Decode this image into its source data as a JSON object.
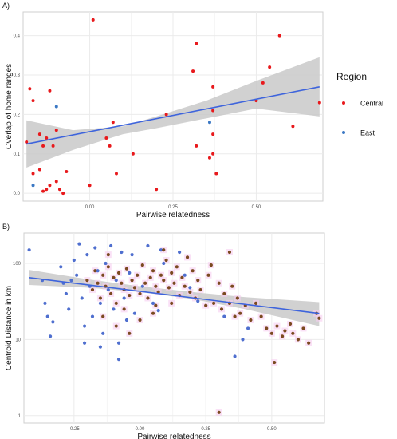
{
  "colors": {
    "central": "#e8191c",
    "east": "#3b78c4",
    "brown": "#7b4a20",
    "blue_dot": "#4f6fcf",
    "fit_line": "#3e64dc",
    "ribbon": "#c9c9c9",
    "grid": "#ebebeb",
    "panel_border": "#cfcfcf",
    "pink": "#f7cdf0"
  },
  "chart_data": [
    {
      "panel_label": "A)",
      "type": "scatter",
      "xlabel": "Pairwise relatedness",
      "ylabel": "Overlap of home ranges",
      "xlim": [
        -0.2,
        0.7
      ],
      "ylim": [
        -0.02,
        0.46
      ],
      "xticks": [
        0.0,
        0.25,
        0.5
      ],
      "xtick_labels": [
        "0.00",
        "0.25",
        "0.50"
      ],
      "yticks": [
        0.0,
        0.1,
        0.2,
        0.3,
        0.4
      ],
      "ytick_labels": [
        "0.0",
        "0.1",
        "0.2",
        "0.3",
        "0.4"
      ],
      "grid": true,
      "legend": {
        "title": "Region",
        "placement": "right",
        "entries": [
          {
            "label": "Central",
            "color": "#e8191c"
          },
          {
            "label": "East",
            "color": "#3b78c4"
          }
        ]
      },
      "fit": {
        "x": [
          -0.19,
          0.69
        ],
        "y": [
          0.125,
          0.27
        ]
      },
      "ribbon": {
        "x": [
          -0.19,
          -0.05,
          0.1,
          0.2,
          0.35,
          0.5,
          0.69
        ],
        "upper": [
          0.185,
          0.16,
          0.17,
          0.195,
          0.235,
          0.285,
          0.345
        ],
        "lower": [
          0.065,
          0.11,
          0.15,
          0.165,
          0.19,
          0.215,
          0.195
        ]
      },
      "series": [
        {
          "name": "Central",
          "color": "#e8191c",
          "points": [
            [
              0.01,
              0.44
            ],
            [
              -0.19,
              0.13
            ],
            [
              -0.18,
              0.265
            ],
            [
              -0.17,
              0.235
            ],
            [
              -0.15,
              0.15
            ],
            [
              -0.14,
              0.12
            ],
            [
              -0.13,
              0.14
            ],
            [
              -0.12,
              0.26
            ],
            [
              -0.11,
              0.12
            ],
            [
              -0.1,
              0.16
            ],
            [
              -0.17,
              0.05
            ],
            [
              -0.15,
              0.06
            ],
            [
              -0.13,
              0.01
            ],
            [
              -0.12,
              0.02
            ],
            [
              -0.1,
              0.03
            ],
            [
              -0.09,
              0.01
            ],
            [
              -0.08,
              0.0
            ],
            [
              -0.07,
              0.055
            ],
            [
              -0.14,
              0.005
            ],
            [
              0.0,
              0.02
            ],
            [
              0.05,
              0.14
            ],
            [
              0.06,
              0.12
            ],
            [
              0.07,
              0.18
            ],
            [
              0.08,
              0.05
            ],
            [
              0.13,
              0.1
            ],
            [
              0.2,
              0.01
            ],
            [
              0.23,
              0.2
            ],
            [
              0.31,
              0.31
            ],
            [
              0.32,
              0.38
            ],
            [
              0.32,
              0.12
            ],
            [
              0.37,
              0.27
            ],
            [
              0.37,
              0.21
            ],
            [
              0.37,
              0.15
            ],
            [
              0.37,
              0.1
            ],
            [
              0.38,
              0.05
            ],
            [
              0.5,
              0.235
            ],
            [
              0.52,
              0.28
            ],
            [
              0.54,
              0.32
            ],
            [
              0.57,
              0.4
            ],
            [
              0.61,
              0.17
            ],
            [
              0.69,
              0.23
            ],
            [
              0.36,
              0.09
            ]
          ]
        },
        {
          "name": "East",
          "color": "#3b78c4",
          "points": [
            [
              -0.1,
              0.22
            ],
            [
              0.36,
              0.18
            ],
            [
              -0.17,
              0.02
            ]
          ]
        }
      ]
    },
    {
      "panel_label": "B)",
      "type": "scatter",
      "xlabel": "Pairwise relatedness",
      "ylabel": "Centroid Distance in km",
      "xlim": [
        -0.44,
        0.7
      ],
      "ylog": true,
      "ylim": [
        0.8,
        250
      ],
      "xticks": [
        -0.25,
        0.0,
        0.25,
        0.5
      ],
      "xtick_labels": [
        "-0.25",
        "0.00",
        "0.25",
        "0.50"
      ],
      "yticks": [
        1,
        10,
        100
      ],
      "ytick_labels": [
        "1",
        "10",
        "100"
      ],
      "grid": true,
      "fit": {
        "x": [
          -0.42,
          0.68
        ],
        "y": [
          65,
          22
        ]
      },
      "ribbon": {
        "x": [
          -0.42,
          -0.2,
          0.0,
          0.2,
          0.4,
          0.68
        ],
        "upper": [
          82,
          62,
          50,
          42,
          36,
          31
        ],
        "lower": [
          52,
          48,
          42,
          34,
          25,
          15
        ]
      },
      "series": [
        {
          "color": "#4f6fcf",
          "points": [
            [
              -0.42,
              150
            ],
            [
              -0.37,
              60
            ],
            [
              -0.36,
              30
            ],
            [
              -0.35,
              20
            ],
            [
              -0.34,
              11
            ],
            [
              -0.3,
              90
            ],
            [
              -0.28,
              40
            ],
            [
              -0.27,
              25
            ],
            [
              -0.26,
              60
            ],
            [
              -0.25,
              110
            ],
            [
              -0.24,
              70
            ],
            [
              -0.23,
              180
            ],
            [
              -0.22,
              35
            ],
            [
              -0.21,
              15
            ],
            [
              -0.2,
              130
            ],
            [
              -0.19,
              50
            ],
            [
              -0.18,
              20
            ],
            [
              -0.17,
              160
            ],
            [
              -0.16,
              80
            ],
            [
              -0.15,
              30
            ],
            [
              -0.14,
              12
            ],
            [
              -0.13,
              100
            ],
            [
              -0.12,
              45
            ],
            [
              -0.11,
              170
            ],
            [
              -0.1,
              25
            ],
            [
              -0.09,
              60
            ],
            [
              -0.08,
              9
            ],
            [
              -0.07,
              140
            ],
            [
              -0.06,
              35
            ],
            [
              -0.05,
              18
            ],
            [
              -0.04,
              75
            ],
            [
              -0.03,
              130
            ],
            [
              0.01,
              50
            ],
            [
              0.03,
              170
            ],
            [
              0.05,
              30
            ],
            [
              0.08,
              150
            ],
            [
              0.09,
              100
            ],
            [
              0.15,
              140
            ],
            [
              0.17,
              70
            ],
            [
              0.32,
              20
            ],
            [
              0.36,
              6
            ],
            [
              0.39,
              10
            ],
            [
              0.41,
              14
            ],
            [
              -0.08,
              5.5
            ],
            [
              -0.33,
              17
            ],
            [
              -0.21,
              9
            ],
            [
              -0.02,
              22
            ],
            [
              0.19,
              48
            ],
            [
              -0.29,
              55
            ],
            [
              -0.15,
              8
            ],
            [
              0.07,
              24
            ],
            [
              0.22,
              32
            ]
          ]
        },
        {
          "color": "#7b4a20",
          "points": [
            [
              -0.2,
              60
            ],
            [
              -0.18,
              45
            ],
            [
              -0.17,
              80
            ],
            [
              -0.16,
              55
            ],
            [
              -0.15,
              35
            ],
            [
              -0.14,
              70
            ],
            [
              -0.13,
              50
            ],
            [
              -0.12,
              90
            ],
            [
              -0.11,
              40
            ],
            [
              -0.1,
              65
            ],
            [
              -0.09,
              30
            ],
            [
              -0.08,
              75
            ],
            [
              -0.07,
              55
            ],
            [
              -0.06,
              45
            ],
            [
              -0.05,
              85
            ],
            [
              -0.04,
              38
            ],
            [
              -0.03,
              60
            ],
            [
              -0.02,
              48
            ],
            [
              -0.01,
              70
            ],
            [
              0.0,
              40
            ],
            [
              0.01,
              95
            ],
            [
              0.02,
              55
            ],
            [
              0.03,
              35
            ],
            [
              0.04,
              65
            ],
            [
              0.05,
              80
            ],
            [
              0.06,
              50
            ],
            [
              0.07,
              42
            ],
            [
              0.08,
              70
            ],
            [
              0.09,
              60
            ],
            [
              0.1,
              110
            ],
            [
              0.11,
              48
            ],
            [
              0.12,
              75
            ],
            [
              0.13,
              55
            ],
            [
              0.14,
              90
            ],
            [
              0.15,
              38
            ],
            [
              0.16,
              65
            ],
            [
              0.17,
              50
            ],
            [
              0.18,
              120
            ],
            [
              0.19,
              42
            ],
            [
              0.2,
              80
            ],
            [
              0.21,
              35
            ],
            [
              0.22,
              60
            ],
            [
              0.23,
              45
            ],
            [
              0.25,
              28
            ],
            [
              0.26,
              70
            ],
            [
              0.28,
              30
            ],
            [
              0.3,
              55
            ],
            [
              0.31,
              25
            ],
            [
              0.32,
              40
            ],
            [
              0.34,
              30
            ],
            [
              0.35,
              50
            ],
            [
              0.36,
              20
            ],
            [
              0.37,
              35
            ],
            [
              0.38,
              22
            ],
            [
              0.4,
              28
            ],
            [
              0.42,
              18
            ],
            [
              0.44,
              30
            ],
            [
              0.46,
              20
            ],
            [
              0.48,
              14
            ],
            [
              0.5,
              12
            ],
            [
              0.52,
              15
            ],
            [
              0.54,
              11
            ],
            [
              0.55,
              13
            ],
            [
              0.57,
              16
            ],
            [
              0.58,
              12
            ],
            [
              0.6,
              10
            ],
            [
              0.62,
              14
            ],
            [
              0.64,
              9
            ],
            [
              0.67,
              22
            ],
            [
              0.68,
              19
            ],
            [
              -0.12,
              130
            ],
            [
              -0.06,
              25
            ],
            [
              0.0,
              18
            ],
            [
              0.05,
              22
            ],
            [
              -0.09,
              15
            ],
            [
              0.12,
              30
            ],
            [
              0.3,
              1.1
            ],
            [
              0.51,
              5
            ],
            [
              0.34,
              140
            ],
            [
              -0.14,
              20
            ],
            [
              -0.04,
              12
            ],
            [
              0.09,
              150
            ],
            [
              0.27,
              95
            ],
            [
              0.06,
              28
            ]
          ]
        }
      ]
    }
  ]
}
